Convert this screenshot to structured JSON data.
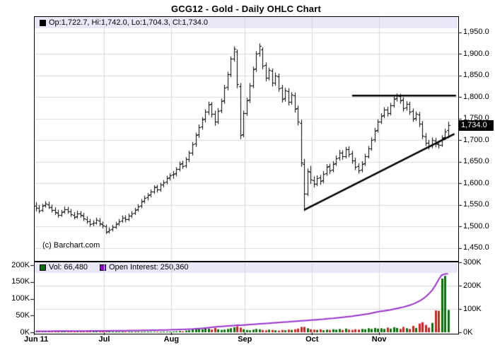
{
  "window": {
    "title": "GCG12 - Gold - Daily OHLC Chart"
  },
  "ohlc_strip": {
    "label": "Op:1,722.7, Hi:1,742.0, Lo:1,704.3, Cl:1,734.0"
  },
  "volume_legend": {
    "vol_label": "Vol: 66,480",
    "oi_label": "Open Interest: 250,360"
  },
  "watermark": "(c) Barchart.com",
  "last_price_marker": {
    "text": "1,734.0",
    "price": 1734
  },
  "colors": {
    "up_volume": "#0a6e0a",
    "down_volume": "#cc2222",
    "open_interest_line": "#9933cc",
    "grid": "#d9d9d9",
    "ohlc_bar": "#000000",
    "trendline": "#000000",
    "strip_bg": "#e8e8f8",
    "marker_bg": "#000000",
    "marker_fg": "#ffffff"
  },
  "price_axis": {
    "ticks": [
      {
        "value": 1950,
        "label": "1,950.0"
      },
      {
        "value": 1900,
        "label": "1,900.0"
      },
      {
        "value": 1850,
        "label": "1,850.0"
      },
      {
        "value": 1800,
        "label": "1,800.0"
      },
      {
        "value": 1750,
        "label": "1,750.0"
      },
      {
        "value": 1700,
        "label": "1,700.0"
      },
      {
        "value": 1650,
        "label": "1,650.0"
      },
      {
        "value": 1600,
        "label": "1,600.0"
      },
      {
        "value": 1550,
        "label": "1,550.0"
      },
      {
        "value": 1500,
        "label": "1,500.0"
      },
      {
        "value": 1450,
        "label": "1,450.0"
      }
    ]
  },
  "volume_axis_left": {
    "ticks": [
      {
        "value": 200,
        "label": "200K"
      },
      {
        "value": 150,
        "label": "150K"
      },
      {
        "value": 100,
        "label": "100K"
      },
      {
        "value": 50,
        "label": "50K"
      },
      {
        "value": 0,
        "label": "0K"
      }
    ]
  },
  "volume_axis_right": {
    "ticks": [
      {
        "value": 300,
        "label": "300K"
      },
      {
        "value": 200,
        "label": "200K"
      },
      {
        "value": 100,
        "label": "100K"
      },
      {
        "value": 0,
        "label": "0K"
      }
    ]
  },
  "x_axis": {
    "labels": [
      {
        "text": "Jun 11",
        "index": 0,
        "align": "left"
      },
      {
        "text": "Jul",
        "index": 22,
        "align": "center"
      },
      {
        "text": "Aug",
        "index": 43,
        "align": "center"
      },
      {
        "text": "Sep",
        "index": 66,
        "align": "center"
      },
      {
        "text": "Oct",
        "index": 87,
        "align": "center"
      },
      {
        "text": "Nov",
        "index": 108,
        "align": "center"
      }
    ]
  },
  "chart_data": {
    "type": "ohlc+volume",
    "title": "GCG12 - Gold - Daily OHLC Chart",
    "price_axis": {
      "min": 1450,
      "max": 1950,
      "step": 50
    },
    "volume_axis": {
      "left_max_k": 200,
      "right_max_k": 300
    },
    "x_months": [
      "Jun 11",
      "Jul",
      "Aug",
      "Sep",
      "Oct",
      "Nov"
    ],
    "month_start_indices": [
      0,
      22,
      43,
      66,
      87,
      108
    ],
    "last_bar": {
      "open": 1722.7,
      "high": 1742.0,
      "low": 1704.3,
      "close": 1734.0,
      "volume": 66480,
      "open_interest": 250360
    },
    "bars_format": [
      "open",
      "high",
      "low",
      "close",
      "volume_k",
      "open_interest_k"
    ],
    "bars": [
      [
        1548,
        1556,
        1534,
        1543,
        0.3,
        4.5
      ],
      [
        1543,
        1549,
        1530,
        1536,
        0.2,
        4.6
      ],
      [
        1537,
        1552,
        1533,
        1548,
        0.4,
        4.7
      ],
      [
        1549,
        1558,
        1543,
        1552,
        0.3,
        4.8
      ],
      [
        1551,
        1557,
        1540,
        1545,
        0.2,
        4.8
      ],
      [
        1544,
        1550,
        1532,
        1538,
        0.3,
        4.9
      ],
      [
        1537,
        1544,
        1526,
        1532,
        0.2,
        5.0
      ],
      [
        1531,
        1538,
        1520,
        1526,
        0.4,
        5.0
      ],
      [
        1527,
        1538,
        1522,
        1533,
        0.3,
        5.1
      ],
      [
        1534,
        1546,
        1529,
        1540,
        0.2,
        5.2
      ],
      [
        1539,
        1545,
        1529,
        1535,
        0.3,
        5.2
      ],
      [
        1534,
        1540,
        1522,
        1528,
        0.4,
        5.3
      ],
      [
        1527,
        1533,
        1516,
        1522,
        0.2,
        5.4
      ],
      [
        1523,
        1536,
        1518,
        1530,
        0.3,
        5.4
      ],
      [
        1529,
        1535,
        1520,
        1526,
        0.2,
        5.5
      ],
      [
        1525,
        1531,
        1512,
        1518,
        0.4,
        5.6
      ],
      [
        1517,
        1523,
        1506,
        1512,
        0.3,
        5.6
      ],
      [
        1511,
        1517,
        1499,
        1505,
        0.5,
        5.7
      ],
      [
        1506,
        1514,
        1500,
        1508,
        0.3,
        5.8
      ],
      [
        1509,
        1520,
        1504,
        1514,
        0.2,
        5.9
      ],
      [
        1513,
        1519,
        1500,
        1506,
        0.4,
        6.0
      ],
      [
        1505,
        1511,
        1495,
        1502,
        0.3,
        6.1
      ],
      [
        1500,
        1504,
        1482,
        1487,
        0.5,
        6.2
      ],
      [
        1488,
        1497,
        1483,
        1492,
        0.4,
        6.4
      ],
      [
        1493,
        1503,
        1488,
        1498,
        0.6,
        6.5
      ],
      [
        1499,
        1510,
        1494,
        1505,
        0.5,
        6.7
      ],
      [
        1506,
        1517,
        1501,
        1512,
        0.8,
        6.8
      ],
      [
        1513,
        1525,
        1508,
        1520,
        0.6,
        7.0
      ],
      [
        1519,
        1525,
        1509,
        1516,
        0.5,
        7.1
      ],
      [
        1517,
        1529,
        1512,
        1524,
        0.7,
        7.3
      ],
      [
        1525,
        1535,
        1519,
        1530,
        0.6,
        7.5
      ],
      [
        1531,
        1543,
        1526,
        1538,
        0.8,
        7.7
      ],
      [
        1539,
        1551,
        1534,
        1546,
        0.7,
        7.9
      ],
      [
        1547,
        1563,
        1542,
        1558,
        1.0,
        8.1
      ],
      [
        1559,
        1571,
        1553,
        1566,
        0.8,
        8.3
      ],
      [
        1567,
        1577,
        1560,
        1572,
        0.9,
        8.5
      ],
      [
        1573,
        1585,
        1567,
        1580,
        0.7,
        8.8
      ],
      [
        1581,
        1595,
        1575,
        1590,
        1.2,
        9.0
      ],
      [
        1591,
        1596,
        1578,
        1585,
        0.9,
        9.3
      ],
      [
        1586,
        1601,
        1580,
        1596,
        1.1,
        9.6
      ],
      [
        1597,
        1607,
        1590,
        1602,
        0.8,
        9.9
      ],
      [
        1603,
        1617,
        1597,
        1612,
        1.0,
        10.2
      ],
      [
        1613,
        1623,
        1606,
        1618,
        1.2,
        10.5
      ],
      [
        1619,
        1628,
        1610,
        1622,
        2.5,
        11
      ],
      [
        1623,
        1637,
        1616,
        1632,
        3,
        11.5
      ],
      [
        1633,
        1650,
        1627,
        1645,
        4,
        12
      ],
      [
        1646,
        1652,
        1633,
        1640,
        3,
        12.5
      ],
      [
        1641,
        1660,
        1635,
        1655,
        5,
        13
      ],
      [
        1656,
        1675,
        1649,
        1670,
        6,
        13.5
      ],
      [
        1671,
        1695,
        1664,
        1690,
        8,
        14
      ],
      [
        1691,
        1717,
        1684,
        1712,
        10,
        15
      ],
      [
        1713,
        1736,
        1705,
        1730,
        12,
        16
      ],
      [
        1731,
        1753,
        1724,
        1748,
        9,
        17
      ],
      [
        1749,
        1771,
        1741,
        1765,
        14,
        18
      ],
      [
        1766,
        1789,
        1758,
        1782,
        11,
        19.5
      ],
      [
        1783,
        1788,
        1752,
        1760,
        8,
        21
      ],
      [
        1761,
        1768,
        1733,
        1742,
        13,
        22.5
      ],
      [
        1743,
        1774,
        1737,
        1768,
        9,
        24
      ],
      [
        1769,
        1796,
        1762,
        1790,
        7,
        25
      ],
      [
        1791,
        1828,
        1784,
        1822,
        8,
        26
      ],
      [
        1823,
        1858,
        1815,
        1852,
        10,
        27
      ],
      [
        1853,
        1894,
        1846,
        1888,
        12,
        28
      ],
      [
        1889,
        1917,
        1882,
        1912,
        15,
        29
      ],
      [
        1905,
        1910,
        1820,
        1830,
        18,
        30
      ],
      [
        1825,
        1832,
        1702,
        1712,
        14,
        30.5
      ],
      [
        1713,
        1768,
        1706,
        1762,
        9,
        31
      ],
      [
        1763,
        1798,
        1756,
        1792,
        7,
        32
      ],
      [
        1793,
        1832,
        1786,
        1826,
        6,
        33
      ],
      [
        1827,
        1870,
        1820,
        1864,
        8,
        34
      ],
      [
        1865,
        1906,
        1858,
        1900,
        10,
        35
      ],
      [
        1901,
        1924,
        1893,
        1918,
        9,
        36
      ],
      [
        1910,
        1915,
        1864,
        1872,
        7,
        37
      ],
      [
        1873,
        1880,
        1836,
        1844,
        6,
        38
      ],
      [
        1845,
        1868,
        1838,
        1862,
        8,
        39
      ],
      [
        1860,
        1866,
        1824,
        1832,
        7,
        40
      ],
      [
        1833,
        1856,
        1826,
        1850,
        6,
        41
      ],
      [
        1848,
        1854,
        1812,
        1820,
        5,
        42
      ],
      [
        1821,
        1828,
        1787,
        1795,
        7,
        43
      ],
      [
        1796,
        1821,
        1789,
        1815,
        6,
        44
      ],
      [
        1813,
        1820,
        1780,
        1788,
        8,
        45
      ],
      [
        1789,
        1811,
        1782,
        1805,
        7,
        46
      ],
      [
        1803,
        1810,
        1764,
        1772,
        9,
        47
      ],
      [
        1773,
        1780,
        1734,
        1742,
        11,
        48
      ],
      [
        1740,
        1747,
        1638,
        1648,
        16,
        49
      ],
      [
        1645,
        1656,
        1535,
        1575,
        16,
        50
      ],
      [
        1576,
        1634,
        1570,
        1628,
        12,
        51
      ],
      [
        1626,
        1640,
        1598,
        1608,
        9,
        52
      ],
      [
        1606,
        1616,
        1590,
        1598,
        8,
        53
      ],
      [
        1599,
        1618,
        1593,
        1612,
        7,
        54
      ],
      [
        1613,
        1619,
        1596,
        1605,
        9,
        55
      ],
      [
        1606,
        1628,
        1600,
        1622,
        6,
        56
      ],
      [
        1623,
        1644,
        1617,
        1638,
        8,
        57.5
      ],
      [
        1639,
        1645,
        1621,
        1630,
        7,
        59
      ],
      [
        1631,
        1651,
        1625,
        1645,
        9,
        60
      ],
      [
        1646,
        1664,
        1640,
        1658,
        8,
        61.5
      ],
      [
        1659,
        1677,
        1652,
        1670,
        10,
        63
      ],
      [
        1671,
        1676,
        1654,
        1662,
        7,
        64.5
      ],
      [
        1663,
        1684,
        1657,
        1678,
        11,
        66
      ],
      [
        1679,
        1685,
        1660,
        1668,
        8,
        67.5
      ],
      [
        1669,
        1675,
        1645,
        1652,
        7,
        69
      ],
      [
        1653,
        1659,
        1630,
        1638,
        9,
        71
      ],
      [
        1639,
        1646,
        1622,
        1630,
        8,
        73
      ],
      [
        1631,
        1651,
        1625,
        1645,
        10,
        75
      ],
      [
        1646,
        1668,
        1640,
        1662,
        9,
        77
      ],
      [
        1663,
        1686,
        1657,
        1680,
        12,
        79
      ],
      [
        1681,
        1706,
        1675,
        1700,
        10,
        82
      ],
      [
        1701,
        1728,
        1695,
        1722,
        13,
        85
      ],
      [
        1723,
        1748,
        1717,
        1742,
        11,
        88
      ],
      [
        1743,
        1762,
        1737,
        1756,
        12,
        90
      ],
      [
        1757,
        1776,
        1751,
        1770,
        10,
        92
      ],
      [
        1771,
        1777,
        1754,
        1762,
        14,
        94
      ],
      [
        1763,
        1786,
        1757,
        1780,
        11,
        96
      ],
      [
        1781,
        1801,
        1775,
        1795,
        15,
        99
      ],
      [
        1796,
        1808,
        1789,
        1803,
        13,
        102
      ],
      [
        1802,
        1807,
        1784,
        1792,
        10,
        105
      ],
      [
        1793,
        1799,
        1766,
        1774,
        16,
        108
      ],
      [
        1775,
        1790,
        1768,
        1784,
        12,
        112
      ],
      [
        1783,
        1789,
        1758,
        1766,
        10,
        116
      ],
      [
        1767,
        1773,
        1742,
        1750,
        19,
        121
      ],
      [
        1751,
        1766,
        1744,
        1760,
        13,
        127
      ],
      [
        1759,
        1765,
        1730,
        1738,
        26,
        134
      ],
      [
        1737,
        1744,
        1702,
        1710,
        30,
        142
      ],
      [
        1709,
        1716,
        1686,
        1694,
        22,
        152
      ],
      [
        1693,
        1700,
        1678,
        1686,
        14,
        165
      ],
      [
        1687,
        1706,
        1681,
        1700,
        28,
        180
      ],
      [
        1699,
        1705,
        1683,
        1691,
        65,
        200
      ],
      [
        1690,
        1697,
        1680,
        1688,
        64,
        225
      ],
      [
        1689,
        1711,
        1684,
        1705,
        160,
        245
      ],
      [
        1706,
        1726,
        1700,
        1720,
        168,
        250
      ],
      [
        1722.7,
        1742,
        1704.3,
        1734,
        66.5,
        250.4
      ]
    ],
    "trendlines": [
      {
        "name": "resistance",
        "type": "horizontal",
        "price": 1803,
        "from_index": 99,
        "to_index": 131.5
      },
      {
        "name": "support",
        "type": "segment",
        "from": {
          "index": 84,
          "price": 1538
        },
        "to": {
          "index": 131,
          "price": 1714
        }
      }
    ]
  }
}
